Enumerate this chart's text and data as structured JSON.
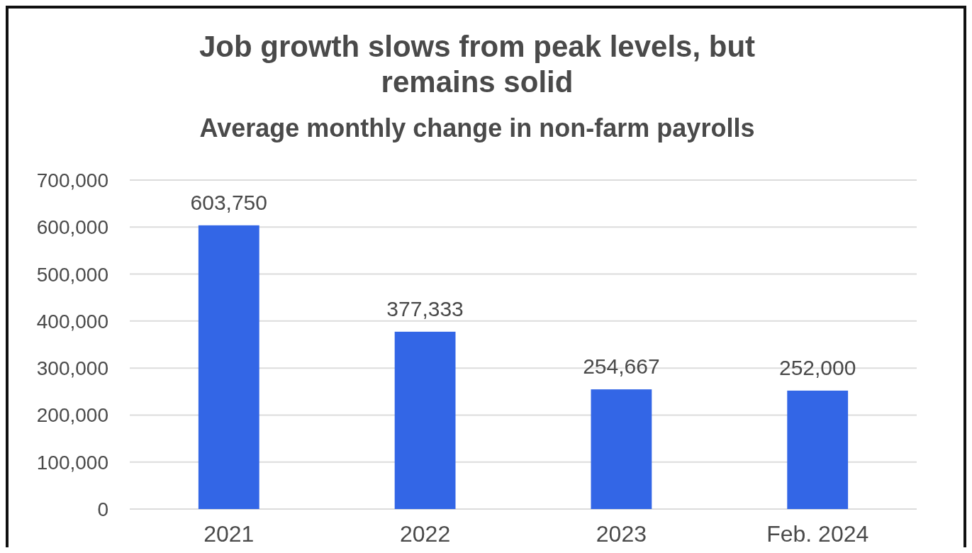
{
  "chart_data": {
    "type": "bar",
    "title": "Job growth slows from peak levels, but remains solid",
    "subtitle": "Average monthly change in non-farm payrolls",
    "categories": [
      "2021",
      "2022",
      "2023",
      "Feb. 2024"
    ],
    "values": [
      603750,
      377333,
      254667,
      252000
    ],
    "value_labels": [
      "603,750",
      "377,333",
      "254,667",
      "252,000"
    ],
    "color": "#3366e6",
    "ylim": [
      0,
      700000
    ],
    "yticks": [
      0,
      {
        "value": 100000,
        "label": "100,000"
      },
      {
        "value": 200000,
        "label": "200,000"
      },
      {
        "value": 300000,
        "label": "300,000"
      },
      {
        "value": 400000,
        "label": "400,000"
      },
      {
        "value": 500000,
        "label": "500,000"
      },
      {
        "value": 600000,
        "label": "600,000"
      },
      {
        "value": 700000,
        "label": "700,000"
      }
    ],
    "grid": "y"
  }
}
